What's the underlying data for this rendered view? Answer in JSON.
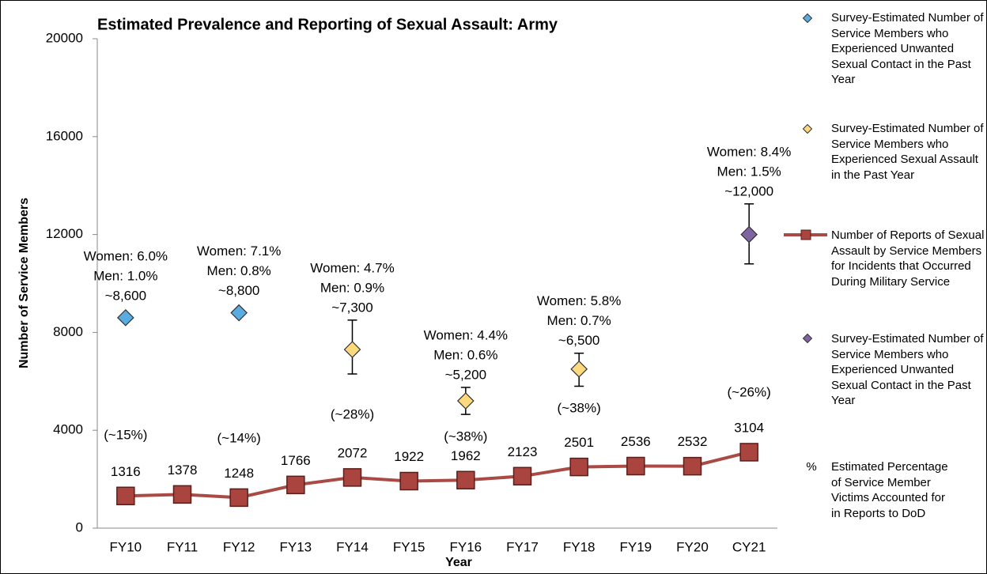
{
  "chart_data": {
    "type": "line",
    "title": "Estimated Prevalence and Reporting of Sexual Assault: Army",
    "x_label": "Year",
    "y_label": "Number of Service Members",
    "categories": [
      "FY10",
      "FY11",
      "FY12",
      "FY13",
      "FY14",
      "FY15",
      "FY16",
      "FY17",
      "FY18",
      "FY19",
      "FY20",
      "CY21"
    ],
    "ylim": [
      0,
      20000
    ],
    "yticks": [
      0,
      4000,
      8000,
      12000,
      16000,
      20000
    ],
    "series": [
      {
        "name": "Survey-Estimated Number of Service Members who Experienced Unwanted Sexual Contact in the Past Year",
        "color": "#5aace0",
        "mark": "diamond",
        "values": [
          8600,
          null,
          8800,
          null,
          null,
          null,
          null,
          null,
          null,
          null,
          null,
          null
        ],
        "point_labels": [
          [
            "Women: 6.0%",
            "Men: 1.0%",
            "~8,600"
          ],
          null,
          [
            "Women: 7.1%",
            "Men: 0.8%",
            "~8,800"
          ],
          null,
          null,
          null,
          null,
          null,
          null,
          null,
          null,
          null
        ]
      },
      {
        "name": "Survey-Estimated Number of Service Members who Experienced Sexual Assault in the Past Year",
        "color": "#fbd97c",
        "mark": "diamond",
        "values": [
          null,
          null,
          null,
          null,
          7300,
          null,
          5200,
          null,
          6500,
          null,
          null,
          null
        ],
        "lower": [
          null,
          null,
          null,
          null,
          6300,
          null,
          4650,
          null,
          5800,
          null,
          null,
          null
        ],
        "upper": [
          null,
          null,
          null,
          null,
          8500,
          null,
          5750,
          null,
          7150,
          null,
          null,
          null
        ],
        "point_labels": [
          null,
          null,
          null,
          null,
          [
            "Women: 4.7%",
            "Men: 0.9%",
            "~7,300"
          ],
          null,
          [
            "Women: 4.4%",
            "Men: 0.6%",
            "~5,200"
          ],
          null,
          [
            "Women: 5.8%",
            "Men: 0.7%",
            "~6,500"
          ],
          null,
          null,
          null
        ]
      },
      {
        "name": "Number of Reports of Sexual Assault by Service Members for Incidents that Occurred During Military Service",
        "color": "#a94a45",
        "mark": "line",
        "values": [
          1316,
          1378,
          1248,
          1766,
          2072,
          1922,
          1962,
          2123,
          2501,
          2536,
          2532,
          3104
        ]
      },
      {
        "name": "Survey-Estimated Number of Service Members who Experienced Unwanted Sexual Contact in the Past Year",
        "color": "#8064a2",
        "mark": "diamond",
        "values": [
          null,
          null,
          null,
          null,
          null,
          null,
          null,
          null,
          null,
          null,
          null,
          12000
        ],
        "lower": [
          null,
          null,
          null,
          null,
          null,
          null,
          null,
          null,
          null,
          null,
          null,
          10800
        ],
        "upper": [
          null,
          null,
          null,
          null,
          null,
          null,
          null,
          null,
          null,
          null,
          null,
          13250
        ],
        "point_labels": [
          null,
          null,
          null,
          null,
          null,
          null,
          null,
          null,
          null,
          null,
          null,
          [
            "Women: 8.4%",
            "Men: 1.5%",
            "~12,000"
          ]
        ]
      }
    ],
    "percent_labels": [
      "(~15%)",
      null,
      "(~14%)",
      null,
      "(~28%)",
      null,
      "(~38%)",
      null,
      "(~38%)",
      null,
      null,
      "(~26%)"
    ],
    "legend_note": {
      "symbol": "%",
      "text": "Estimated Percentage of Service Member Victims Accounted for in Reports to DoD"
    }
  }
}
